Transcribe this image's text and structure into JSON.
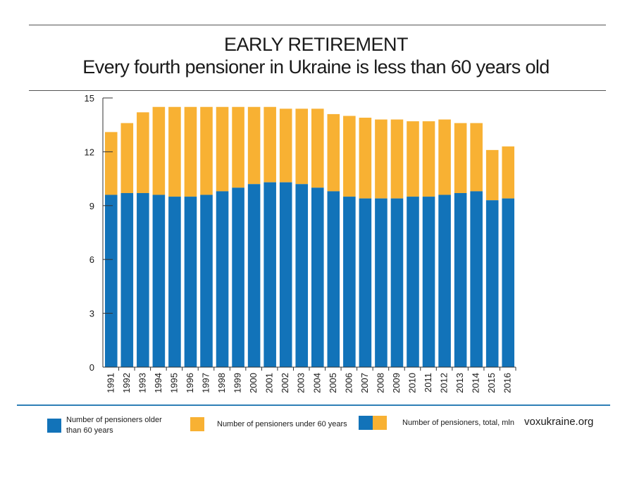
{
  "title": "EARLY RETIREMENT",
  "subtitle": "Every fourth pensioner in Ukraine is less than 60 years old",
  "colors": {
    "older": "#1273b9",
    "under": "#f8b133",
    "axis": "#333333"
  },
  "chart_data": {
    "type": "bar",
    "stacked": true,
    "title": "EARLY RETIREMENT",
    "subtitle": "Every fourth pensioner in Ukraine is less than 60 years old",
    "xlabel": "",
    "ylabel": "",
    "ylim": [
      0,
      15
    ],
    "yticks": [
      0,
      3,
      6,
      9,
      12,
      15
    ],
    "grid": false,
    "categories": [
      "1991",
      "1992",
      "1993",
      "1994",
      "1995",
      "1996",
      "1997",
      "1998",
      "1999",
      "2000",
      "2001",
      "2002",
      "2003",
      "2004",
      "2005",
      "2006",
      "2007",
      "2008",
      "2009",
      "2010",
      "2011",
      "2012",
      "2013",
      "2014",
      "2015",
      "2016"
    ],
    "series": [
      {
        "name": "Number of pensioners older than 60 years",
        "values": [
          9.6,
          9.7,
          9.7,
          9.6,
          9.5,
          9.5,
          9.6,
          9.8,
          10.0,
          10.2,
          10.3,
          10.3,
          10.2,
          10.0,
          9.8,
          9.5,
          9.4,
          9.4,
          9.4,
          9.5,
          9.5,
          9.6,
          9.7,
          9.8,
          9.3,
          9.4
        ]
      },
      {
        "name": "Number of pensioners under 60 years",
        "values": [
          3.5,
          3.9,
          4.5,
          4.9,
          5.0,
          5.0,
          4.9,
          4.7,
          4.5,
          4.3,
          4.2,
          4.1,
          4.2,
          4.4,
          4.3,
          4.5,
          4.5,
          4.4,
          4.4,
          4.2,
          4.2,
          4.2,
          3.9,
          3.8,
          2.8,
          2.9
        ]
      }
    ],
    "totals": [
      13.1,
      13.6,
      14.2,
      14.5,
      14.5,
      14.5,
      14.5,
      14.5,
      14.5,
      14.5,
      14.5,
      14.4,
      14.4,
      14.4,
      14.1,
      14.0,
      13.9,
      13.8,
      13.8,
      13.7,
      13.7,
      13.8,
      13.6,
      13.6,
      12.1,
      12.3
    ]
  },
  "legend": {
    "older_label": "Number of pensioners older than 60 years",
    "under_label": "Number of pensioners under 60 years",
    "total_label": "Number of pensioners, total, mln",
    "placement": "bottom"
  },
  "source": "voxukraine.org"
}
